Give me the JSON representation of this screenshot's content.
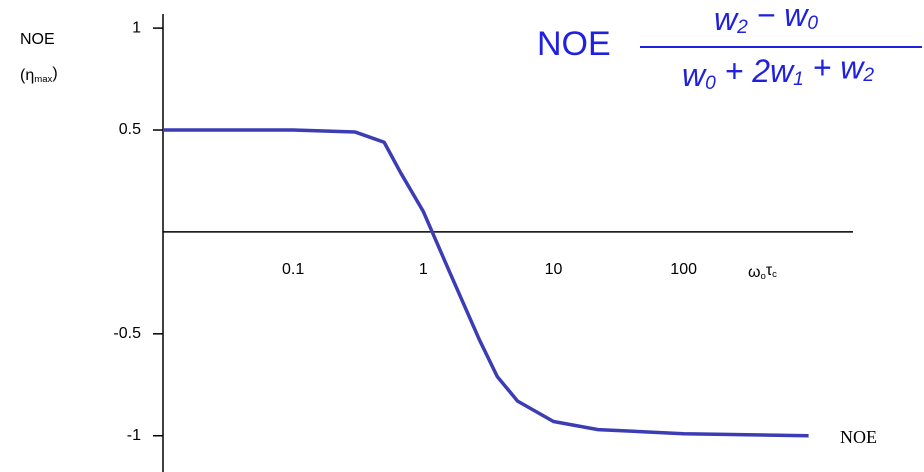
{
  "chart_data": {
    "type": "line",
    "y_label": "NOE",
    "y_label_unit": [
      {
        "text": "(η",
        "sub": "max"
      },
      {
        "text": ")"
      }
    ],
    "x_label": [
      {
        "text": "ω",
        "sub": "o"
      },
      {
        "text": "τ",
        "sub": "c"
      }
    ],
    "formula": {
      "label": "NOE",
      "numerator": [
        {
          "text": "w",
          "sub": "2"
        },
        {
          "text": " − "
        },
        {
          "text": "w",
          "sub": "0"
        }
      ],
      "denominator": [
        {
          "text": "w",
          "sub": "0"
        },
        {
          "text": " + 2"
        },
        {
          "text": "w",
          "sub": "1"
        },
        {
          "text": " + "
        },
        {
          "text": "w",
          "sub": "2"
        }
      ]
    },
    "x_scale": "log",
    "xlim": [
      0.01,
      2000
    ],
    "ylim": [
      -1.07,
      1.03
    ],
    "xticks": [
      0.1,
      1,
      10,
      100
    ],
    "yticks": [
      -1,
      -0.5,
      0.5,
      1
    ],
    "x": [
      0.01,
      0.1,
      0.3,
      0.5,
      0.67,
      1,
      1.17,
      1.6,
      2.7,
      3.7,
      5.3,
      10,
      22,
      100,
      912
    ],
    "series": [
      {
        "name": "NOE",
        "color": "#3c3cb4",
        "values": [
          0.5,
          0.5,
          0.49,
          0.44,
          0.29,
          0.1,
          0,
          -0.2,
          -0.53,
          -0.71,
          -0.83,
          -0.93,
          -0.97,
          -0.99,
          -1
        ]
      }
    ]
  }
}
